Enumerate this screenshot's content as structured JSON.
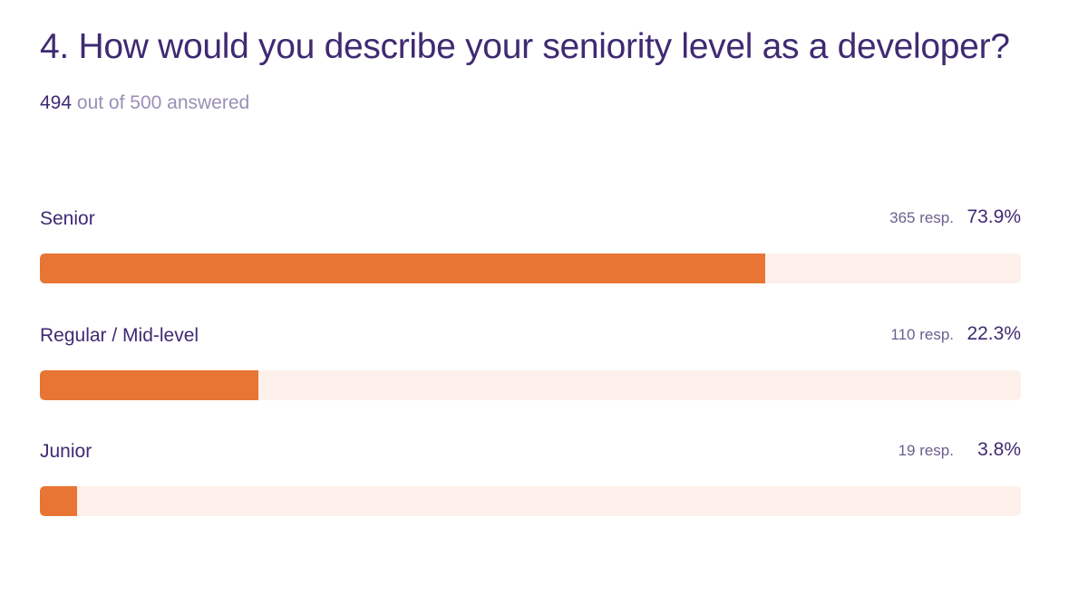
{
  "question": {
    "title": "4. How would you describe your seniority level as a developer?",
    "answered_count": "494",
    "answered_suffix": "out of 500 answered"
  },
  "colors": {
    "bar_fill": "#e87533",
    "bar_track": "#fdf0ea",
    "text_primary": "#3f2a72",
    "text_muted": "#9a8fb5"
  },
  "chart_data": {
    "type": "bar",
    "orientation": "horizontal",
    "title": "4. How would you describe your seniority level as a developer?",
    "categories": [
      "Senior",
      "Regular / Mid-level",
      "Junior"
    ],
    "responses": [
      365,
      110,
      19
    ],
    "values": [
      73.9,
      22.3,
      3.8
    ],
    "response_labels": [
      "365 resp.",
      "110 resp.",
      "19 resp."
    ],
    "percent_labels": [
      "73.9%",
      "22.3%",
      "3.8%"
    ],
    "xlim": [
      0,
      100
    ]
  }
}
